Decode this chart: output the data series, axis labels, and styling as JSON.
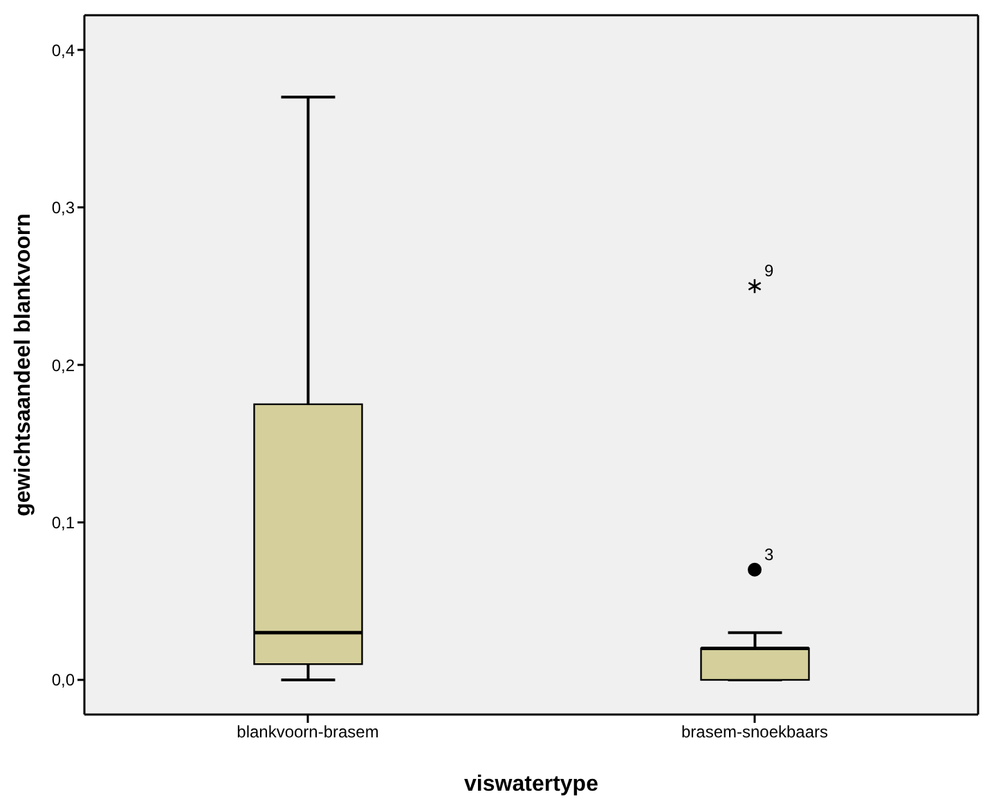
{
  "chart_data": {
    "type": "box",
    "xlabel": "viswatertype",
    "ylabel": "gewichtsaandeel blankvoorn",
    "categories": [
      "blankvoorn-brasem",
      "brasem-snoekbaars"
    ],
    "color": "#d4cf9b",
    "boxes": [
      {
        "low": 0,
        "q1": 0.01,
        "median": 0.03,
        "q3": 0.175,
        "high": 0.37
      },
      {
        "low": 0,
        "q1": 0,
        "median": 0.02,
        "q3": 0.02,
        "high": 0.03,
        "outliers": [
          0.07,
          0.25
        ]
      }
    ],
    "ylim": [
      -0.022,
      0.422
    ],
    "yticks": [
      {
        "value": 0,
        "label": "0,0"
      },
      {
        "value": 0.1,
        "label": "0,1"
      },
      {
        "value": 0.2,
        "label": "0,2"
      },
      {
        "value": 0.3,
        "label": "0,3"
      },
      {
        "value": 0.4,
        "label": "0,4"
      }
    ],
    "annotations": [
      "3",
      "9"
    ],
    "grid": false,
    "legend": false
  }
}
